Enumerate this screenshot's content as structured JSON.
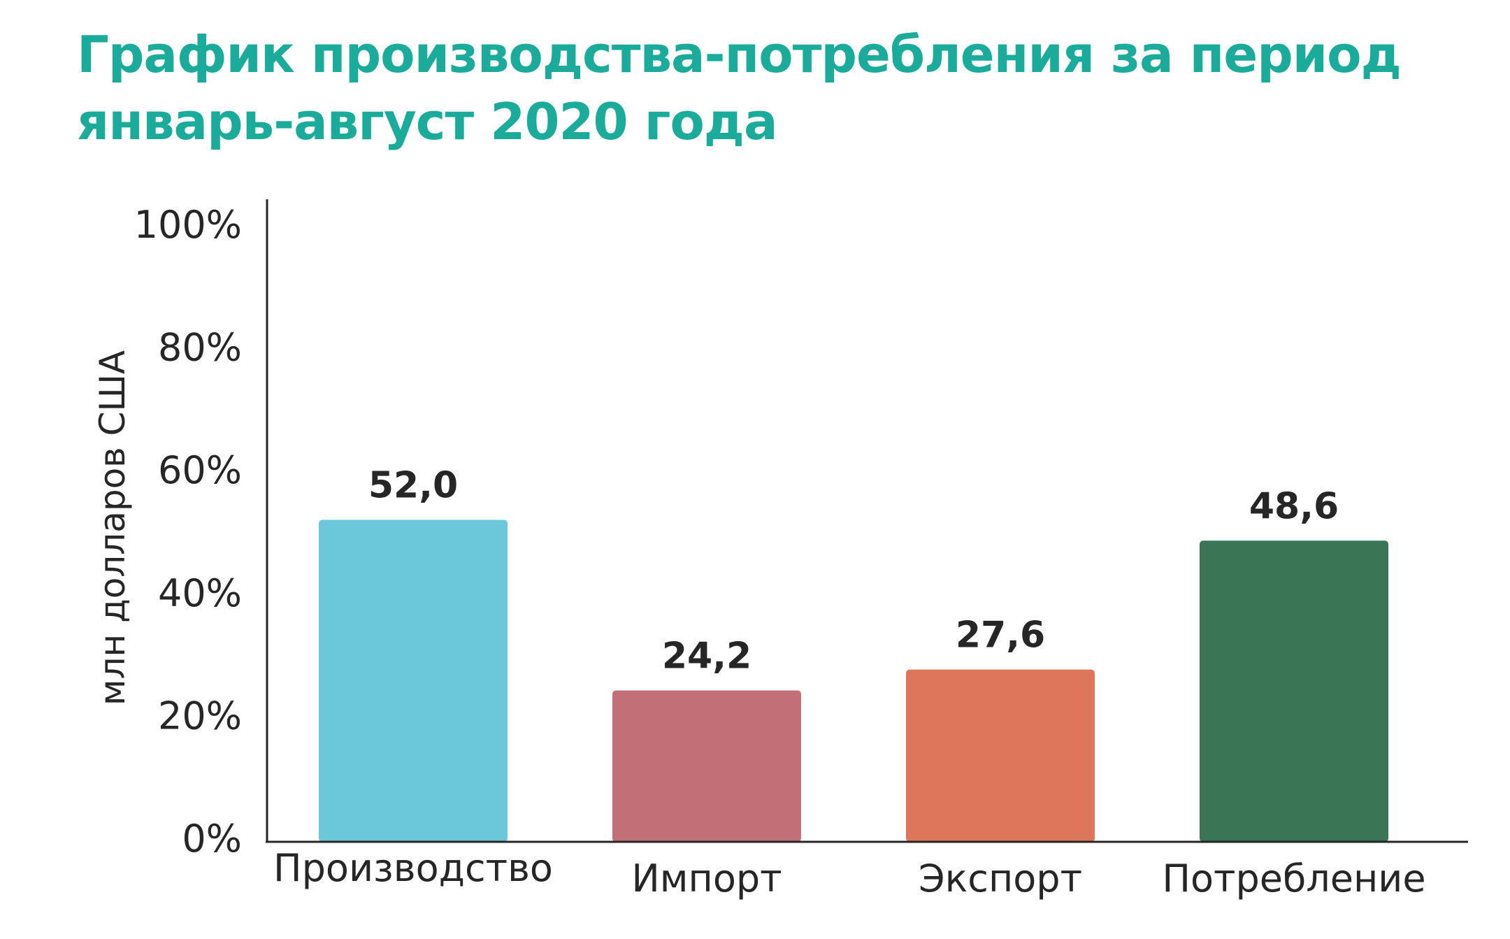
{
  "title_lines": [
    "График производства-потребления за период",
    "январь-август 2020 года"
  ],
  "colors": {
    "title": "#1aab9b",
    "axis": "#262626",
    "bars": [
      "#6ac8da",
      "#c27078",
      "#de765c",
      "#3a7655"
    ]
  },
  "chart_data": {
    "type": "bar",
    "title": "График производства-потребления за период январь-август 2020 года",
    "ylabel": "млн долларов США",
    "xlabel": "",
    "categories": [
      "Производство",
      "Импорт",
      "Экспорт",
      "Потребление"
    ],
    "values": [
      52.0,
      24.2,
      27.6,
      48.6
    ],
    "value_labels": [
      "52,0",
      "24,2",
      "27,6",
      "48,6"
    ],
    "ylim": [
      0,
      100
    ],
    "yticks": [
      0,
      20,
      40,
      60,
      80,
      100
    ],
    "ytick_labels": [
      "0%",
      "20%",
      "40%",
      "60%",
      "80%",
      "100%"
    ],
    "grid": false,
    "legend": "none"
  }
}
